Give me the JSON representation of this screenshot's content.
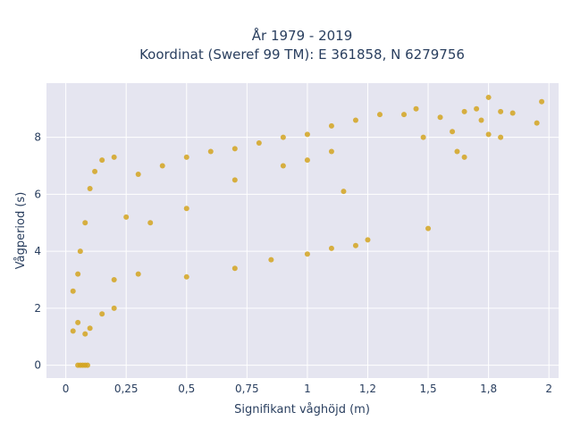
{
  "chart_data": {
    "type": "scatter",
    "title_line1": "År 1979 - 2019",
    "title_line2": "Koordinat (Sweref 99 TM): E 361858, N 6279756",
    "xlabel": "Signifikant våghöjd (m)",
    "ylabel": "Vågperiod (s)",
    "xlim": [
      -0.08,
      2.04
    ],
    "ylim": [
      -0.45,
      9.9
    ],
    "x_ticks": [
      0,
      0.25,
      0.5,
      0.75,
      1,
      1.25,
      1.5,
      1.75,
      2
    ],
    "x_tick_labels": [
      "0",
      "0,25",
      "0,5",
      "0,75",
      "1",
      "1,2",
      "1,5",
      "1,8",
      "2"
    ],
    "y_ticks": [
      0,
      2,
      4,
      6,
      8
    ],
    "y_tick_labels": [
      "0",
      "2",
      "4",
      "6",
      "8"
    ],
    "grid": true,
    "plot_bg": "#e5e5f0",
    "marker_color": "#d4a420",
    "series": [
      {
        "values": [
          [
            0.05,
            0.0
          ],
          [
            0.06,
            0.0
          ],
          [
            0.07,
            0.0
          ],
          [
            0.08,
            0.0
          ],
          [
            0.09,
            0.0
          ],
          [
            0.03,
            1.2
          ],
          [
            0.05,
            1.5
          ],
          [
            0.08,
            1.1
          ],
          [
            0.1,
            1.3
          ],
          [
            0.15,
            1.8
          ],
          [
            0.2,
            2.0
          ],
          [
            0.03,
            2.6
          ],
          [
            0.05,
            3.2
          ],
          [
            0.06,
            4.0
          ],
          [
            0.08,
            5.0
          ],
          [
            0.1,
            6.2
          ],
          [
            0.12,
            6.8
          ],
          [
            0.15,
            7.2
          ],
          [
            0.2,
            7.3
          ],
          [
            0.3,
            6.7
          ],
          [
            0.4,
            7.0
          ],
          [
            0.5,
            7.3
          ],
          [
            0.6,
            7.5
          ],
          [
            0.7,
            7.6
          ],
          [
            0.8,
            7.8
          ],
          [
            0.9,
            8.0
          ],
          [
            1.0,
            8.1
          ],
          [
            1.1,
            8.4
          ],
          [
            1.2,
            8.6
          ],
          [
            1.3,
            8.8
          ],
          [
            1.4,
            8.8
          ],
          [
            1.45,
            9.0
          ],
          [
            0.25,
            5.2
          ],
          [
            0.35,
            5.0
          ],
          [
            0.5,
            5.5
          ],
          [
            0.7,
            6.5
          ],
          [
            0.9,
            7.0
          ],
          [
            1.0,
            7.2
          ],
          [
            1.1,
            7.5
          ],
          [
            0.2,
            3.0
          ],
          [
            0.3,
            3.2
          ],
          [
            0.5,
            3.1
          ],
          [
            0.7,
            3.4
          ],
          [
            0.85,
            3.7
          ],
          [
            1.0,
            3.9
          ],
          [
            1.1,
            4.1
          ],
          [
            1.2,
            4.2
          ],
          [
            1.25,
            4.4
          ],
          [
            1.5,
            4.8
          ],
          [
            1.55,
            8.7
          ],
          [
            1.6,
            8.2
          ],
          [
            1.65,
            8.9
          ],
          [
            1.7,
            9.0
          ],
          [
            1.72,
            8.6
          ],
          [
            1.75,
            9.4
          ],
          [
            1.8,
            8.9
          ],
          [
            1.85,
            8.85
          ],
          [
            1.95,
            8.5
          ],
          [
            1.97,
            9.25
          ],
          [
            1.8,
            8.0
          ],
          [
            1.75,
            8.1
          ],
          [
            1.65,
            7.3
          ],
          [
            1.62,
            7.5
          ],
          [
            1.48,
            8.0
          ],
          [
            1.15,
            6.1
          ]
        ]
      }
    ]
  }
}
